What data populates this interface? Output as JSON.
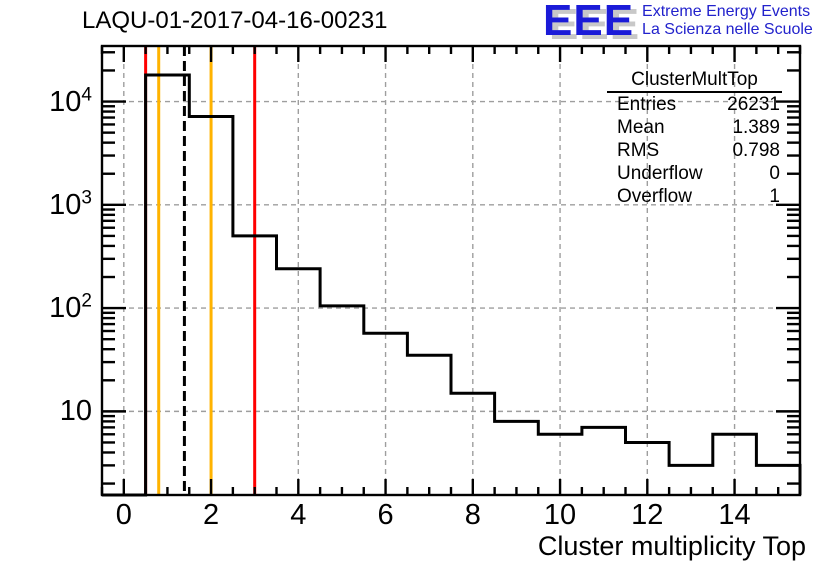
{
  "title": "LAQU-01-2017-04-16-00231",
  "logo": {
    "acronym": "EEE",
    "line1": "Extreme Energy Events",
    "line2": "La Scienza nelle Scuole",
    "text_color": "#2222cc",
    "acronym_color": "#1b1bd8"
  },
  "stats": {
    "title": "ClusterMultTop",
    "rows": [
      {
        "label": "Entries",
        "value": "26231"
      },
      {
        "label": "Mean",
        "value": "1.389"
      },
      {
        "label": "RMS",
        "value": "0.798"
      },
      {
        "label": "Underflow",
        "value": "0"
      },
      {
        "label": "Overflow",
        "value": "1"
      }
    ]
  },
  "chart_data": {
    "type": "bar",
    "subtype": "step-histogram",
    "histogram_name": "ClusterMultTop",
    "xlabel": "Cluster multiplicity Top",
    "bin_centers": [
      0,
      1,
      2,
      3,
      4,
      5,
      6,
      7,
      8,
      9,
      10,
      11,
      12,
      13,
      14,
      15
    ],
    "bin_width": 1,
    "counts": [
      0,
      18070,
      7170,
      500,
      240,
      105,
      57,
      35,
      15,
      8,
      6,
      7,
      5,
      3,
      6,
      3
    ],
    "entries": 26231,
    "mean": 1.389,
    "rms": 0.798,
    "underflow": 0,
    "overflow": 1,
    "x_range": [
      -0.5,
      15.5
    ],
    "y_scale": "log",
    "y_range": [
      1.55,
      34500
    ],
    "x_major_ticks": [
      0,
      2,
      4,
      6,
      8,
      10,
      12,
      14
    ],
    "x_minor_step": 0.5,
    "y_major_ticks": [
      10,
      100,
      1000,
      10000
    ],
    "y_axis_labels": [
      {
        "value": 10,
        "base": "10",
        "exp": ""
      },
      {
        "value": 100,
        "base": "10",
        "exp": "2"
      },
      {
        "value": 1000,
        "base": "10",
        "exp": "3"
      },
      {
        "value": 10000,
        "base": "10",
        "exp": "4"
      }
    ],
    "grid": true,
    "grid_color": "#9e9e9e",
    "line_color": "#000000",
    "marker_lines": [
      {
        "x": 0.5,
        "color": "#ff0000",
        "style": "solid"
      },
      {
        "x": 0.8,
        "color": "#ffb300",
        "style": "solid"
      },
      {
        "x": 1.389,
        "color": "#000000",
        "style": "dashed"
      },
      {
        "x": 2,
        "color": "#ffb300",
        "style": "solid"
      },
      {
        "x": 3,
        "color": "#ff0000",
        "style": "solid"
      }
    ]
  }
}
